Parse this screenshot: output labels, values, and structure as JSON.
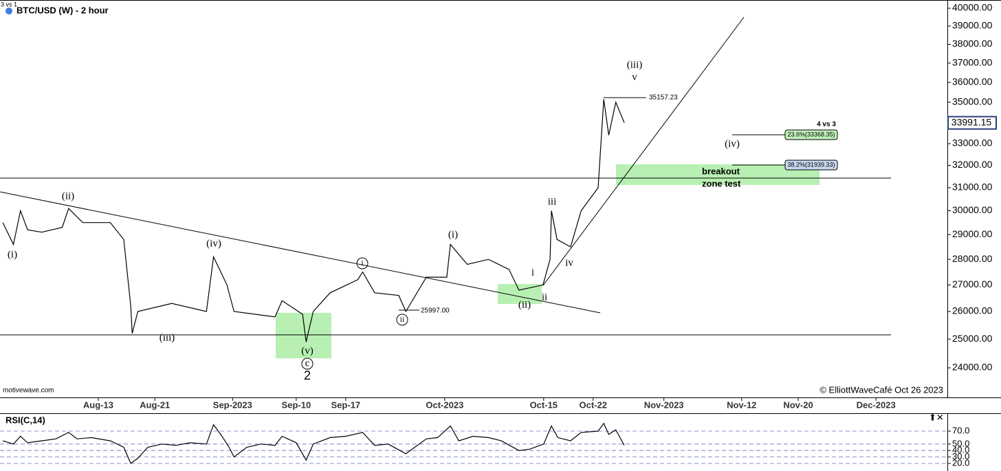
{
  "chart_data": [
    {
      "type": "line",
      "title": "BTC/USD (W) - 2 hour",
      "log_y": true,
      "color": "#000000",
      "x": [
        211.5,
        213,
        214,
        215,
        217,
        219.9,
        220.8,
        222.8,
        226.7,
        228.6,
        229.6,
        229.8,
        230.6,
        235.4,
        240.3,
        241.3,
        243.2,
        244.2,
        250,
        251,
        253.9,
        254.4,
        255.4,
        257.8,
        261.7,
        262.4,
        264.1,
        267.5,
        268.5,
        271.4,
        274.3,
        274.8,
        277.2,
        280.2,
        283.1,
        284.5,
        287.9,
        288.9,
        289.1,
        289.9,
        291.8,
        293.3,
        295.7,
        296.5,
        297.2,
        298.2,
        299.4
      ],
      "values": [
        29500,
        28600,
        30000,
        29200,
        29100,
        29300,
        30100,
        29500,
        29500,
        28800,
        26200,
        25200,
        26000,
        26300,
        26000,
        28100,
        27000,
        26000,
        25800,
        26400,
        25900,
        24900,
        26000,
        26700,
        27200,
        27500,
        26700,
        26600,
        26000,
        27300,
        27300,
        28600,
        27800,
        28000,
        27600,
        26800,
        27000,
        28000,
        30000,
        28800,
        28500,
        30000,
        31000,
        35150,
        33400,
        35000,
        34000
      ],
      "xlim": [
        211.1,
        345.1
      ],
      "ylim": [
        23035,
        40392
      ],
      "xticks": [
        {
          "value": 225,
          "label": "Aug-13"
        },
        {
          "value": 233,
          "label": "Aug-21"
        },
        {
          "value": 244,
          "label": "Sep-2023"
        },
        {
          "value": 253,
          "label": "Sep-10"
        },
        {
          "value": 260,
          "label": "Sep-17"
        },
        {
          "value": 274,
          "label": "Oct-2023"
        },
        {
          "value": 288,
          "label": "Oct-15"
        },
        {
          "value": 295,
          "label": "Oct-22"
        },
        {
          "value": 305,
          "label": "Nov-2023"
        },
        {
          "value": 316,
          "label": "Nov-12"
        },
        {
          "value": 324,
          "label": "Nov-20"
        },
        {
          "value": 335,
          "label": "Dec-2023"
        }
      ],
      "yticks": [
        {
          "value": 24000,
          "label": "24000.00"
        },
        {
          "value": 25000,
          "label": "25000.00"
        },
        {
          "value": 26000,
          "label": "26000.00"
        },
        {
          "value": 27000,
          "label": "27000.00"
        },
        {
          "value": 28000,
          "label": "28000.00"
        },
        {
          "value": 29000,
          "label": "29000.00"
        },
        {
          "value": 30000,
          "label": "30000.00"
        },
        {
          "value": 31000,
          "label": "31000.00"
        },
        {
          "value": 32000,
          "label": "32000.00"
        },
        {
          "value": 33000,
          "label": "33000.00"
        },
        {
          "value": 34000,
          "label": "34000.00"
        },
        {
          "value": 35000,
          "label": "35000.00"
        },
        {
          "value": 36000,
          "label": "36000.00"
        },
        {
          "value": 37000,
          "label": "37000.00"
        },
        {
          "value": 38000,
          "label": "38000.00"
        },
        {
          "value": 39000,
          "label": "39000.00"
        },
        {
          "value": 40000,
          "label": "40000.00"
        }
      ],
      "last_price": 33991.15,
      "annotations": [
        "3 vs 1",
        "(i)",
        "(ii)",
        "(iii)",
        "(iv)",
        "(v)",
        "c",
        "2",
        "i",
        "ii",
        "25997.00",
        "(i)",
        "(ii)",
        "i",
        "ii",
        "iii",
        "iv",
        "(iii)",
        "v",
        "35157.23",
        "4 vs 3",
        "(iv)",
        "23.6%(33368.35)",
        "38.2%(31939.33)",
        "breakout",
        "zone test",
        "motivewave.com",
        "© ElliottWaveCafé Oct 26 2023"
      ]
    },
    {
      "type": "line",
      "title": "RSI(C,14)",
      "color": "#000000",
      "grid": true,
      "x": [
        211.5,
        213,
        214,
        215,
        217,
        219,
        220.8,
        222,
        224,
        226.7,
        228.6,
        229.6,
        230.6,
        232,
        234,
        236,
        238,
        240.3,
        241.3,
        242.5,
        243.5,
        244.2,
        246,
        248,
        250,
        251,
        253,
        254.4,
        255.4,
        257.8,
        260,
        262.4,
        264.1,
        266,
        268.5,
        271.4,
        273,
        274.8,
        276,
        278,
        280.2,
        282,
        284.5,
        286,
        288,
        289.1,
        290,
        291.8,
        293.3,
        295.7,
        296.5,
        297.2,
        298.2,
        299.4
      ],
      "values": [
        55,
        50,
        62,
        52,
        55,
        58,
        68,
        58,
        60,
        55,
        45,
        20,
        28,
        45,
        50,
        48,
        52,
        50,
        80,
        62,
        45,
        30,
        45,
        50,
        48,
        62,
        52,
        25,
        50,
        60,
        62,
        68,
        48,
        50,
        35,
        58,
        60,
        78,
        55,
        62,
        60,
        55,
        40,
        42,
        50,
        78,
        60,
        55,
        68,
        70,
        82,
        65,
        72,
        48
      ],
      "xlim": [
        211.1,
        345.1
      ],
      "ylim": [
        8.3,
        94.5
      ],
      "yticks": [
        {
          "value": 70,
          "label": "70.0"
        },
        {
          "value": 50,
          "label": "50.0"
        },
        {
          "value": 40,
          "label": "40.0"
        },
        {
          "value": 30,
          "label": "30.0"
        },
        {
          "value": 20,
          "label": "20.0"
        }
      ]
    }
  ]
}
